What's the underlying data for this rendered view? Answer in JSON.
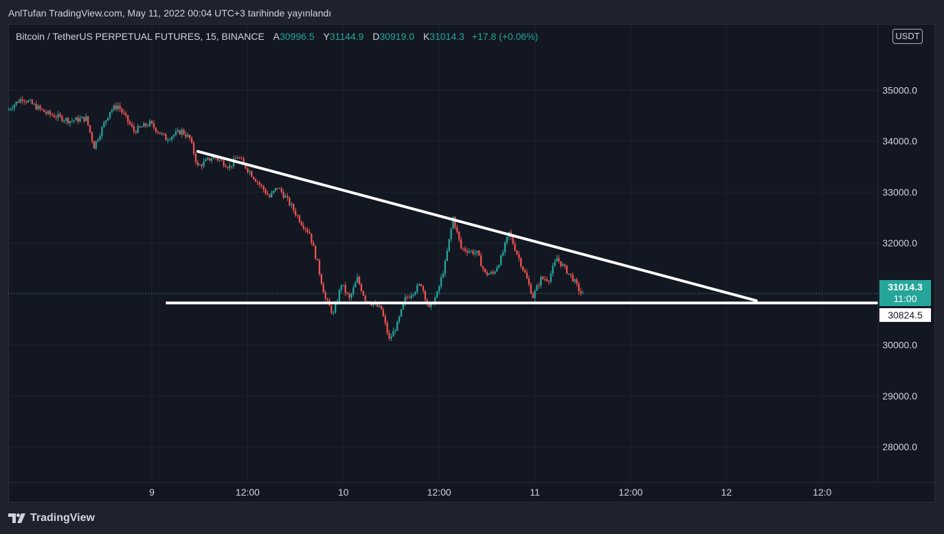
{
  "publish_note": "AnlTufan TradingView.com, May 11, 2022 00:04 UTC+3 tarihinde yayınlandı",
  "legend": {
    "symbol": "Bitcoin / TetherUS PERPETUAL FUTURES, 15, BINANCE",
    "open_label": "A",
    "open": "30996.5",
    "high_label": "Y",
    "high": "31144.9",
    "low_label": "D",
    "low": "30919.0",
    "close_label": "K",
    "close": "31014.3",
    "change": "+17.8 (+0.06%)"
  },
  "currency": "USDT",
  "last_price_tag": {
    "price": "31014.3",
    "countdown": "11:00"
  },
  "support_tag": "30824.5",
  "footer_brand": "TradingView",
  "colors": {
    "up": "#26a69a",
    "down": "#ef5350",
    "background": "#131722",
    "grid": "#1f2430",
    "drawing": "#ffffff"
  },
  "chart_data": {
    "type": "candlestick",
    "timeframe": "15",
    "y_axis": {
      "ticks": [
        35000,
        34000,
        33000,
        32000,
        31000,
        30000,
        29000,
        28000
      ],
      "tick_labels": [
        "35000.0",
        "34000.0",
        "33000.0",
        "32000.0",
        "",
        "30000.0",
        "29000.0",
        "28000.0"
      ],
      "range": [
        27300,
        36300
      ]
    },
    "x_axis": {
      "ticks": [
        "9",
        "12:00",
        "10",
        "12:00",
        "11",
        "12:00",
        "12",
        "12:0"
      ],
      "range_days": [
        "2022-05-08 06:00",
        "2022-05-12 19:00"
      ]
    },
    "price_path": [
      [
        "2022-05-08 06:00",
        34600
      ],
      [
        "2022-05-08 08:00",
        34850
      ],
      [
        "2022-05-08 11:00",
        34550
      ],
      [
        "2022-05-08 14:00",
        34400
      ],
      [
        "2022-05-08 16:00",
        34450
      ],
      [
        "2022-05-08 17:00",
        33900
      ],
      [
        "2022-05-08 19:00",
        34600
      ],
      [
        "2022-05-08 20:00",
        34700
      ],
      [
        "2022-05-08 22:00",
        34200
      ],
      [
        "2022-05-09 00:00",
        34350
      ],
      [
        "2022-05-09 02:00",
        34050
      ],
      [
        "2022-05-09 04:00",
        34200
      ],
      [
        "2022-05-09 05:00",
        34050
      ],
      [
        "2022-05-09 06:00",
        33500
      ],
      [
        "2022-05-09 08:00",
        33700
      ],
      [
        "2022-05-09 10:00",
        33500
      ],
      [
        "2022-05-09 11:00",
        33700
      ],
      [
        "2022-05-09 12:00",
        33500
      ],
      [
        "2022-05-09 14:00",
        33100
      ],
      [
        "2022-05-09 15:00",
        32900
      ],
      [
        "2022-05-09 16:00",
        33100
      ],
      [
        "2022-05-09 17:00",
        32900
      ],
      [
        "2022-05-09 19:00",
        32400
      ],
      [
        "2022-05-09 20:00",
        32200
      ],
      [
        "2022-05-09 21:00",
        31600
      ],
      [
        "2022-05-09 22:00",
        30900
      ],
      [
        "2022-05-09 23:00",
        30600
      ],
      [
        "2022-05-10 00:00",
        31200
      ],
      [
        "2022-05-10 01:00",
        30900
      ],
      [
        "2022-05-10 02:00",
        31300
      ],
      [
        "2022-05-10 03:00",
        30900
      ],
      [
        "2022-05-10 05:00",
        30700
      ],
      [
        "2022-05-10 06:00",
        30100
      ],
      [
        "2022-05-10 07:00",
        30400
      ],
      [
        "2022-05-10 08:00",
        30900
      ],
      [
        "2022-05-10 10:00",
        31200
      ],
      [
        "2022-05-10 11:00",
        30700
      ],
      [
        "2022-05-10 12:00",
        31000
      ],
      [
        "2022-05-10 13:00",
        31600
      ],
      [
        "2022-05-10 14:00",
        32500
      ],
      [
        "2022-05-10 15:00",
        31900
      ],
      [
        "2022-05-10 17:00",
        31800
      ],
      [
        "2022-05-10 18:00",
        31400
      ],
      [
        "2022-05-10 19:00",
        31400
      ],
      [
        "2022-05-10 20:00",
        31700
      ],
      [
        "2022-05-10 21:00",
        32200
      ],
      [
        "2022-05-10 22:00",
        31800
      ],
      [
        "2022-05-10 23:00",
        31400
      ],
      [
        "2022-05-11 00:00",
        30950
      ],
      [
        "2022-05-11 01:00",
        31300
      ],
      [
        "2022-05-11 02:00",
        31300
      ],
      [
        "2022-05-11 03:00",
        31700
      ],
      [
        "2022-05-11 04:00",
        31500
      ],
      [
        "2022-05-11 05:00",
        31300
      ],
      [
        "2022-05-11 06:00",
        31014.3
      ]
    ],
    "last_price": 31014.3,
    "drawings": [
      {
        "type": "trendline",
        "name": "descending resistance",
        "from": [
          "2022-05-09 05:45",
          33800
        ],
        "to": [
          "2022-05-12 03:45",
          30870
        ]
      },
      {
        "type": "horizontal",
        "name": "support",
        "from": "2022-05-09 01:45",
        "price": 30824.5
      }
    ]
  }
}
